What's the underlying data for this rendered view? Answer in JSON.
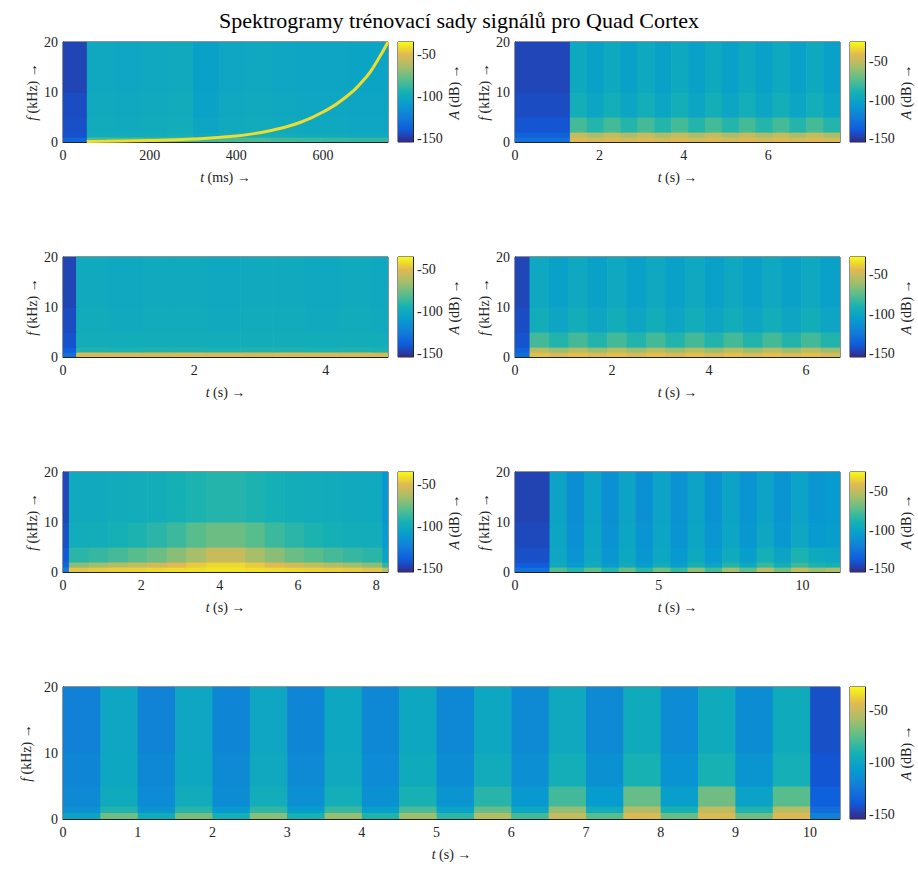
{
  "title": "Spektrogramy trénovací sady signálů pro Quad Cortex",
  "chart_data": [
    {
      "type": "heatmap",
      "xlabel": "t (ms) →",
      "ylabel": "f (kHz) →",
      "xlim": [
        0,
        750
      ],
      "xticks": [
        0,
        200,
        400,
        600
      ],
      "ylim": [
        0,
        20
      ],
      "yticks": [
        0,
        10,
        20
      ],
      "x_edges": [
        0,
        55,
        120,
        180,
        240,
        300,
        360,
        420,
        480,
        540,
        600,
        660,
        720,
        750
      ],
      "y_edges": [
        0,
        1,
        2,
        5,
        10,
        20
      ],
      "cells": [
        [
          -135,
          -82,
          -84,
          -83,
          -82,
          -86,
          -84,
          -83,
          -85,
          -86,
          -87,
          -88,
          -88
        ],
        [
          -142,
          -97,
          -98,
          -97,
          -96,
          -100,
          -98,
          -97,
          -98,
          -99,
          -99,
          -100,
          -100
        ],
        [
          -143,
          -99,
          -100,
          -99,
          -98,
          -103,
          -100,
          -99,
          -100,
          -101,
          -101,
          -102,
          -102
        ],
        [
          -144,
          -100,
          -101,
          -100,
          -99,
          -105,
          -101,
          -100,
          -101,
          -102,
          -102,
          -103,
          -103
        ],
        [
          -146,
          -101,
          -102,
          -101,
          -100,
          -106,
          -102,
          -101,
          -102,
          -103,
          -103,
          -104,
          -104
        ]
      ],
      "ridge": {
        "t": [
          55,
          100,
          200,
          300,
          400,
          450,
          500,
          550,
          600,
          650,
          700,
          725,
          750
        ],
        "f": [
          0.1,
          0.15,
          0.3,
          0.6,
          1.2,
          1.8,
          2.7,
          4,
          6,
          8.8,
          13,
          16.2,
          20
        ],
        "A": -42
      },
      "colorbar": {
        "label": "A (dB) →",
        "lim": [
          -154,
          -35
        ],
        "ticks": [
          -150,
          -100,
          -50
        ]
      }
    },
    {
      "type": "heatmap",
      "xlabel": "t (s) →",
      "ylabel": "f (kHz) →",
      "xlim": [
        0,
        7.7
      ],
      "xticks": [
        0,
        2,
        4,
        6
      ],
      "ylim": [
        0,
        20
      ],
      "yticks": [
        0,
        10,
        20
      ],
      "x_edges": [
        0,
        1.3,
        1.7,
        2.1,
        2.5,
        2.9,
        3.3,
        3.7,
        4.1,
        4.5,
        4.9,
        5.3,
        5.7,
        6.1,
        6.5,
        6.9,
        7.3,
        7.7
      ],
      "y_edges": [
        0,
        1,
        2,
        5,
        10,
        20
      ],
      "cells": [
        [
          -128,
          -42,
          -45,
          -42,
          -45,
          -42,
          -45,
          -42,
          -45,
          -42,
          -45,
          -42,
          -45,
          -42,
          -45,
          -42,
          -45
        ],
        [
          -135,
          -50,
          -56,
          -50,
          -56,
          -50,
          -56,
          -50,
          -56,
          -50,
          -56,
          -50,
          -56,
          -50,
          -56,
          -50,
          -56
        ],
        [
          -140,
          -78,
          -86,
          -78,
          -86,
          -78,
          -86,
          -78,
          -86,
          -78,
          -86,
          -78,
          -86,
          -78,
          -86,
          -78,
          -86
        ],
        [
          -143,
          -92,
          -99,
          -92,
          -99,
          -92,
          -99,
          -92,
          -99,
          -92,
          -99,
          -92,
          -99,
          -92,
          -99,
          -92,
          -99
        ],
        [
          -145,
          -96,
          -102,
          -96,
          -102,
          -96,
          -102,
          -96,
          -102,
          -96,
          -102,
          -96,
          -102,
          -96,
          -102,
          -96,
          -102
        ]
      ],
      "colorbar": {
        "label": "A (dB) →",
        "lim": [
          -154,
          -25
        ],
        "ticks": [
          -150,
          -100,
          -50
        ]
      }
    },
    {
      "type": "heatmap",
      "xlabel": "t (s) →",
      "ylabel": "f (kHz) →",
      "xlim": [
        0,
        4.95
      ],
      "xticks": [
        0,
        2,
        4
      ],
      "ylim": [
        0,
        20
      ],
      "yticks": [
        0,
        10,
        20
      ],
      "x_edges": [
        0,
        0.2,
        0.7,
        1.2,
        1.7,
        2.2,
        2.7,
        3.2,
        3.7,
        4.2,
        4.7,
        4.95
      ],
      "y_edges": [
        0,
        1,
        2,
        5,
        10,
        20
      ],
      "cells": [
        [
          -130,
          -52,
          -52,
          -53,
          -52,
          -52,
          -53,
          -52,
          -52,
          -53,
          -53
        ],
        [
          -138,
          -92,
          -93,
          -92,
          -92,
          -93,
          -92,
          -92,
          -93,
          -92,
          -93
        ],
        [
          -142,
          -97,
          -98,
          -97,
          -97,
          -98,
          -97,
          -97,
          -98,
          -97,
          -98
        ],
        [
          -144,
          -99,
          -100,
          -99,
          -99,
          -100,
          -99,
          -99,
          -100,
          -99,
          -100
        ],
        [
          -146,
          -100,
          -101,
          -100,
          -100,
          -101,
          -100,
          -100,
          -101,
          -100,
          -101
        ]
      ],
      "colorbar": {
        "label": "A (dB) →",
        "lim": [
          -154,
          -35
        ],
        "ticks": [
          -150,
          -100,
          -50
        ]
      }
    },
    {
      "type": "heatmap",
      "xlabel": "t (s) →",
      "ylabel": "f (kHz) →",
      "xlim": [
        0,
        6.7
      ],
      "xticks": [
        0,
        2,
        4,
        6
      ],
      "ylim": [
        0,
        20
      ],
      "yticks": [
        0,
        10,
        20
      ],
      "x_edges": [
        0,
        0.3,
        0.7,
        1.1,
        1.5,
        1.9,
        2.3,
        2.7,
        3.1,
        3.5,
        3.9,
        4.3,
        4.7,
        5.1,
        5.5,
        5.9,
        6.3,
        6.7
      ],
      "y_edges": [
        0,
        1,
        2,
        5,
        10,
        20
      ],
      "cells": [
        [
          -130,
          -42,
          -46,
          -42,
          -46,
          -42,
          -46,
          -42,
          -46,
          -42,
          -46,
          -42,
          -46,
          -42,
          -46,
          -42,
          -46
        ],
        [
          -136,
          -55,
          -62,
          -55,
          -62,
          -55,
          -62,
          -55,
          -62,
          -55,
          -62,
          -55,
          -62,
          -55,
          -62,
          -55,
          -62
        ],
        [
          -141,
          -80,
          -88,
          -80,
          -88,
          -80,
          -88,
          -80,
          -88,
          -80,
          -88,
          -80,
          -88,
          -80,
          -88,
          -80,
          -88
        ],
        [
          -143,
          -94,
          -100,
          -94,
          -100,
          -94,
          -100,
          -94,
          -100,
          -94,
          -100,
          -94,
          -100,
          -94,
          -100,
          -94,
          -100
        ],
        [
          -145,
          -98,
          -103,
          -98,
          -103,
          -98,
          -103,
          -98,
          -103,
          -98,
          -103,
          -98,
          -103,
          -98,
          -103,
          -98,
          -103
        ]
      ],
      "colorbar": {
        "label": "A (dB) →",
        "lim": [
          -154,
          -28
        ],
        "ticks": [
          -150,
          -100,
          -50
        ]
      }
    },
    {
      "type": "heatmap",
      "xlabel": "t (s) →",
      "ylabel": "f (kHz) →",
      "xlim": [
        0,
        8.3
      ],
      "xticks": [
        0,
        2,
        4,
        6,
        8
      ],
      "ylim": [
        0,
        20
      ],
      "yticks": [
        0,
        10,
        20
      ],
      "x_edges": [
        0,
        0.15,
        0.65,
        1.15,
        1.65,
        2.15,
        2.65,
        3.15,
        3.65,
        4.15,
        4.65,
        5.15,
        5.65,
        6.15,
        6.65,
        7.15,
        7.65,
        8.15,
        8.3
      ],
      "y_edges": [
        0,
        1,
        2,
        5,
        10,
        20
      ],
      "cells": [
        [
          -125,
          -48,
          -46,
          -45,
          -44,
          -43,
          -42,
          -41,
          -40,
          -40,
          -41,
          -42,
          -43,
          -44,
          -45,
          -46,
          -48,
          -60
        ],
        [
          -135,
          -70,
          -66,
          -62,
          -58,
          -54,
          -50,
          -46,
          -43,
          -43,
          -46,
          -50,
          -54,
          -58,
          -62,
          -66,
          -70,
          -90
        ],
        [
          -140,
          -90,
          -87,
          -84,
          -80,
          -76,
          -70,
          -64,
          -56,
          -56,
          -64,
          -70,
          -76,
          -80,
          -84,
          -87,
          -90,
          -105
        ],
        [
          -143,
          -98,
          -97,
          -95,
          -93,
          -90,
          -86,
          -80,
          -76,
          -76,
          -80,
          -86,
          -90,
          -93,
          -95,
          -97,
          -98,
          -110
        ],
        [
          -145,
          -100,
          -100,
          -99,
          -98,
          -97,
          -95,
          -93,
          -91,
          -91,
          -93,
          -95,
          -97,
          -98,
          -99,
          -100,
          -100,
          -112
        ]
      ],
      "colorbar": {
        "label": "A (dB) →",
        "lim": [
          -154,
          -35
        ],
        "ticks": [
          -150,
          -100,
          -50
        ]
      }
    },
    {
      "type": "heatmap",
      "xlabel": "t (s) →",
      "ylabel": "f (kHz) →",
      "xlim": [
        0,
        11.3
      ],
      "xticks": [
        0,
        5,
        10
      ],
      "ylim": [
        0,
        20
      ],
      "yticks": [
        0,
        10,
        20
      ],
      "x_edges": [
        0,
        1.2,
        1.8,
        2.4,
        3.0,
        3.6,
        4.2,
        4.8,
        5.4,
        6.0,
        6.6,
        7.2,
        7.8,
        8.4,
        9.0,
        9.6,
        10.2,
        10.8,
        11.3
      ],
      "y_edges": [
        0,
        1,
        2,
        5,
        10,
        20
      ],
      "cells": [
        [
          -128,
          -75,
          -85,
          -72,
          -85,
          -70,
          -84,
          -68,
          -82,
          -62,
          -78,
          -58,
          -72,
          -52,
          -68,
          -50,
          -60,
          -55
        ],
        [
          -138,
          -95,
          -106,
          -95,
          -105,
          -94,
          -104,
          -93,
          -103,
          -90,
          -100,
          -86,
          -96,
          -82,
          -92,
          -80,
          -88,
          -90
        ],
        [
          -142,
          -98,
          -110,
          -98,
          -109,
          -97,
          -108,
          -97,
          -107,
          -96,
          -106,
          -95,
          -104,
          -90,
          -100,
          -88,
          -96,
          -98
        ],
        [
          -144,
          -99,
          -112,
          -99,
          -111,
          -99,
          -110,
          -99,
          -110,
          -99,
          -109,
          -99,
          -108,
          -98,
          -107,
          -98,
          -106,
          -104
        ],
        [
          -146,
          -100,
          -113,
          -100,
          -112,
          -100,
          -112,
          -100,
          -111,
          -100,
          -111,
          -100,
          -110,
          -100,
          -110,
          -100,
          -109,
          -106
        ]
      ],
      "colorbar": {
        "label": "A (dB) →",
        "lim": [
          -154,
          -25
        ],
        "ticks": [
          -150,
          -100,
          -50
        ]
      }
    },
    {
      "type": "heatmap",
      "xlabel": "t (s) →",
      "ylabel": "f (kHz) →",
      "xlim": [
        0,
        10.4
      ],
      "xticks": [
        0,
        1,
        2,
        3,
        4,
        5,
        6,
        7,
        8,
        9,
        10
      ],
      "ylim": [
        0,
        20
      ],
      "yticks": [
        0,
        10,
        20
      ],
      "x_edges": [
        0,
        0.5,
        1,
        1.5,
        2,
        2.5,
        3,
        3.5,
        4,
        4.5,
        5,
        5.5,
        6,
        6.5,
        7,
        7.5,
        8,
        8.5,
        9,
        9.5,
        10,
        10.4
      ],
      "y_edges": [
        0,
        1,
        2,
        5,
        10,
        20
      ],
      "cells": [
        [
          -100,
          -70,
          -95,
          -68,
          -92,
          -65,
          -90,
          -62,
          -88,
          -60,
          -85,
          -55,
          -80,
          -50,
          -75,
          -45,
          -72,
          -45,
          -70,
          -44,
          -120
        ],
        [
          -112,
          -88,
          -110,
          -86,
          -108,
          -84,
          -106,
          -82,
          -104,
          -78,
          -102,
          -72,
          -98,
          -62,
          -94,
          -55,
          -90,
          -52,
          -88,
          -54,
          -130
        ],
        [
          -116,
          -96,
          -115,
          -95,
          -114,
          -94,
          -113,
          -93,
          -112,
          -90,
          -110,
          -86,
          -108,
          -80,
          -106,
          -72,
          -104,
          -70,
          -102,
          -75,
          -136
        ],
        [
          -118,
          -98,
          -117,
          -98,
          -116,
          -97,
          -116,
          -97,
          -115,
          -96,
          -114,
          -95,
          -113,
          -93,
          -112,
          -90,
          -111,
          -90,
          -110,
          -92,
          -140
        ],
        [
          -120,
          -99,
          -119,
          -99,
          -118,
          -99,
          -118,
          -98,
          -117,
          -98,
          -117,
          -98,
          -116,
          -97,
          -116,
          -96,
          -115,
          -96,
          -114,
          -96,
          -142
        ]
      ],
      "colorbar": {
        "label": "A (dB) →",
        "lim": [
          -154,
          -27
        ],
        "ticks": [
          -150,
          -100,
          -50
        ]
      }
    }
  ]
}
